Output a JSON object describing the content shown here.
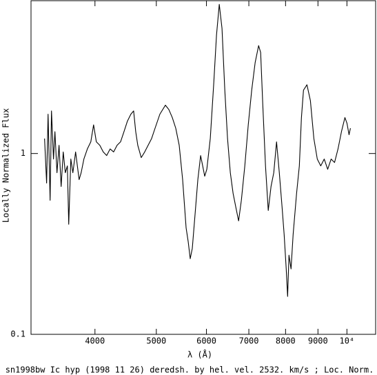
{
  "chart_data": {
    "type": "line",
    "caption": "sn1998bw Ic hyp (1998 11 26) deredsh. by hel. vel.  2532. km/s ;  Loc. Norm.",
    "xlabel": "λ (Å)",
    "ylabel": "Locally Normalized Flux",
    "xscale": "log",
    "yscale": "log",
    "color": "#000000",
    "xlim": [
      3170,
      11100
    ],
    "ylim": [
      0.1,
      7
    ],
    "xticks": [
      4000,
      5000,
      6000,
      7000,
      8000,
      9000,
      {
        "value": 10000,
        "label": "10⁴"
      }
    ],
    "yticks": [
      0.1,
      1
    ],
    "x": [
      3330,
      3355,
      3373,
      3398,
      3415,
      3440,
      3458,
      3484,
      3510,
      3537,
      3564,
      3591,
      3618,
      3636,
      3664,
      3691,
      3728,
      3776,
      3804,
      3842,
      3891,
      3940,
      3980,
      4020,
      4071,
      4122,
      4174,
      4227,
      4281,
      4335,
      4390,
      4445,
      4501,
      4558,
      4604,
      4639,
      4674,
      4733,
      4793,
      4853,
      4915,
      4977,
      5065,
      5168,
      5233,
      5299,
      5366,
      5434,
      5502,
      5572,
      5614,
      5656,
      5699,
      5757,
      5815,
      5874,
      5918,
      5962,
      6008,
      6084,
      6161,
      6223,
      6286,
      6349,
      6414,
      6478,
      6544,
      6610,
      6676,
      6744,
      6812,
      6898,
      6985,
      7073,
      7162,
      7253,
      7307,
      7363,
      7437,
      7512,
      7588,
      7664,
      7742,
      7820,
      7899,
      7959,
      8019,
      8060,
      8100,
      8161,
      8223,
      8327,
      8411,
      8475,
      8539,
      8647,
      8756,
      8867,
      8978,
      9092,
      9207,
      9324,
      9442,
      9560,
      9681,
      9803,
      9927,
      10002,
      10077,
      10128
    ],
    "values": [
      1.21,
      0.686,
      1.65,
      0.551,
      1.72,
      0.932,
      1.32,
      0.783,
      1.11,
      0.657,
      1.02,
      0.783,
      0.854,
      0.406,
      0.932,
      0.783,
      1.02,
      0.717,
      0.783,
      0.932,
      1.06,
      1.16,
      1.44,
      1.16,
      1.11,
      1.02,
      0.974,
      1.06,
      1.02,
      1.11,
      1.16,
      1.32,
      1.51,
      1.65,
      1.72,
      1.32,
      1.11,
      0.949,
      1.02,
      1.11,
      1.21,
      1.38,
      1.65,
      1.85,
      1.75,
      1.58,
      1.38,
      1.11,
      0.717,
      0.388,
      0.326,
      0.262,
      0.299,
      0.463,
      0.717,
      0.974,
      0.854,
      0.749,
      0.818,
      1.21,
      2.44,
      4.51,
      6.68,
      4.92,
      2.24,
      1.21,
      0.783,
      0.602,
      0.505,
      0.424,
      0.551,
      0.854,
      1.44,
      2.24,
      3.18,
      3.95,
      3.62,
      1.88,
      0.854,
      0.484,
      0.657,
      0.783,
      1.16,
      0.783,
      0.505,
      0.356,
      0.23,
      0.162,
      0.274,
      0.23,
      0.356,
      0.602,
      0.854,
      1.58,
      2.24,
      2.4,
      1.96,
      1.21,
      0.932,
      0.854,
      0.932,
      0.818,
      0.932,
      0.892,
      1.06,
      1.32,
      1.58,
      1.47,
      1.27,
      1.38
    ]
  }
}
